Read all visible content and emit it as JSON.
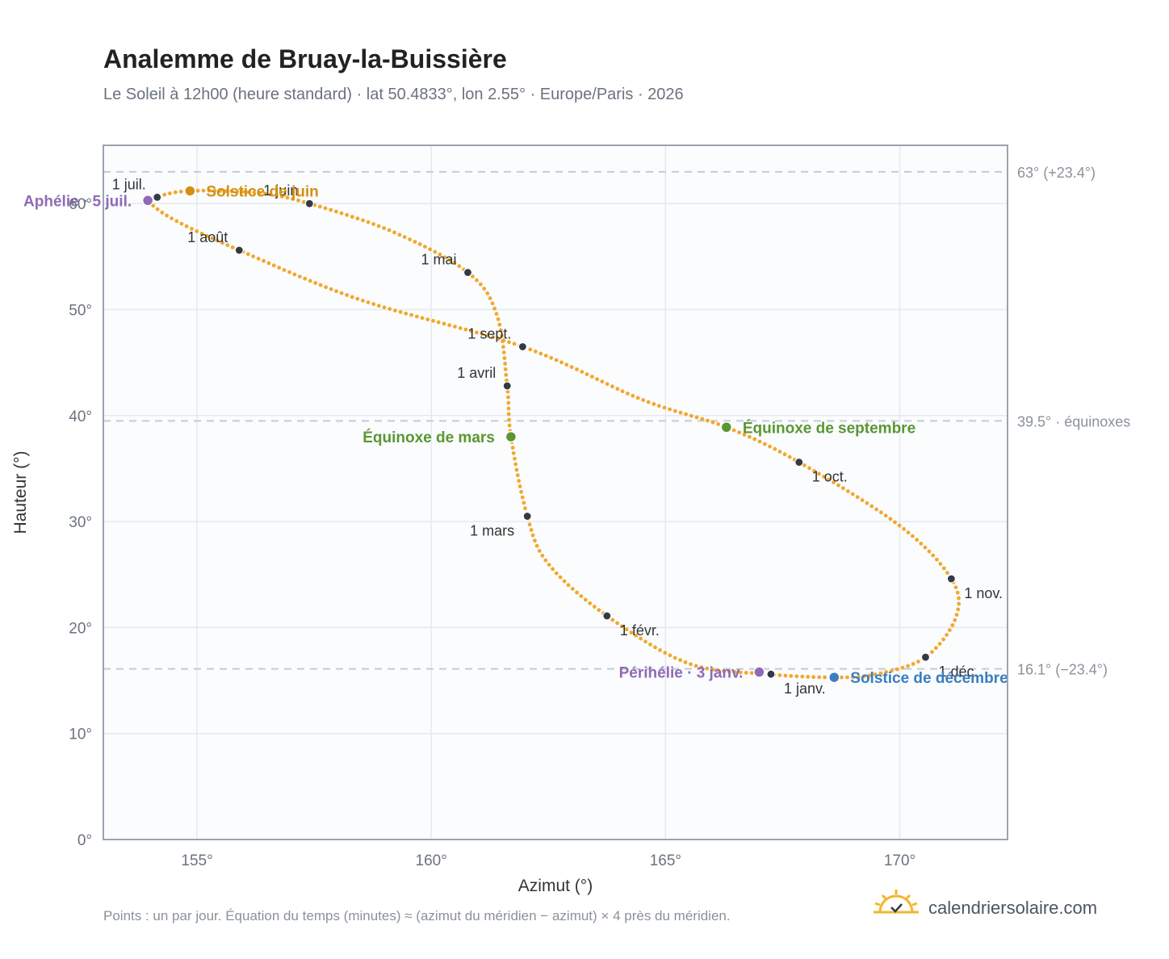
{
  "header": {
    "title": "Analemme de Bruay-la-Buissière",
    "subtitle": "Le Soleil à 12h00 (heure standard) · lat 50.4833°, lon 2.55° · Europe/Paris · 2026"
  },
  "footer": {
    "note": "Points : un par jour. Équation du temps (minutes) ≈ (azimut du méridien − azimut) × 4 près du méridien.",
    "brand": "calendriersolaire.com"
  },
  "colors": {
    "curve": "#f2a82c",
    "month_marker": "#333a45",
    "solstice_june": "#d4900f",
    "solstice_dec": "#3a7ebf",
    "equinox": "#5a9632",
    "apsis": "#8f6bb5",
    "grid": "#e5e9ef",
    "plot_bg": "#fafcfe",
    "frame": "#9aa4b2",
    "ref_line": "#c3cbd4"
  },
  "chart_data": {
    "type": "scatter",
    "xlabel": "Azimut (°)",
    "ylabel": "Hauteur (°)",
    "xlim": [
      153,
      172.3
    ],
    "ylim": [
      0,
      65.5
    ],
    "x_ticks": [
      {
        "value": 155,
        "label": "155°"
      },
      {
        "value": 160,
        "label": "160°"
      },
      {
        "value": 165,
        "label": "165°"
      },
      {
        "value": 170,
        "label": "170°"
      }
    ],
    "y_ticks": [
      {
        "value": 0,
        "label": "0°"
      },
      {
        "value": 10,
        "label": "10°"
      },
      {
        "value": 20,
        "label": "20°"
      },
      {
        "value": 30,
        "label": "30°"
      },
      {
        "value": 40,
        "label": "40°"
      },
      {
        "value": 50,
        "label": "50°"
      },
      {
        "value": 60,
        "label": "60°"
      }
    ],
    "grid": true,
    "reference_lines": [
      {
        "y": 63.0,
        "label": "63° (+23.4°)"
      },
      {
        "y": 39.5,
        "label": "39.5° · équinoxes"
      },
      {
        "y": 16.1,
        "label": "16.1° (−23.4°)"
      }
    ],
    "daily_track_waypoints": [
      {
        "x": 167.2,
        "y": 15.6
      },
      {
        "x": 165.5,
        "y": 16.6
      },
      {
        "x": 163.75,
        "y": 21.1
      },
      {
        "x": 162.5,
        "y": 26.0
      },
      {
        "x": 162.05,
        "y": 30.5
      },
      {
        "x": 161.7,
        "y": 38.0
      },
      {
        "x": 161.62,
        "y": 42.8
      },
      {
        "x": 161.4,
        "y": 49.5
      },
      {
        "x": 160.78,
        "y": 53.5
      },
      {
        "x": 159.2,
        "y": 57.3
      },
      {
        "x": 157.4,
        "y": 60.0
      },
      {
        "x": 156.3,
        "y": 61.0
      },
      {
        "x": 154.85,
        "y": 61.2
      },
      {
        "x": 154.1,
        "y": 60.6
      },
      {
        "x": 153.95,
        "y": 60.3
      },
      {
        "x": 154.5,
        "y": 58.5
      },
      {
        "x": 155.9,
        "y": 55.6
      },
      {
        "x": 158.5,
        "y": 50.9
      },
      {
        "x": 161.95,
        "y": 46.5
      },
      {
        "x": 164.5,
        "y": 41.5
      },
      {
        "x": 166.3,
        "y": 38.9
      },
      {
        "x": 167.85,
        "y": 35.6
      },
      {
        "x": 170.0,
        "y": 29.6
      },
      {
        "x": 171.1,
        "y": 24.6
      },
      {
        "x": 171.2,
        "y": 21.0
      },
      {
        "x": 170.55,
        "y": 17.2
      },
      {
        "x": 169.5,
        "y": 15.6
      },
      {
        "x": 168.6,
        "y": 15.3
      },
      {
        "x": 167.2,
        "y": 15.6
      }
    ],
    "month_markers": [
      {
        "label": "1 janv.",
        "x": 167.25,
        "y": 15.6,
        "anchor": "bottom-right"
      },
      {
        "label": "1 févr.",
        "x": 163.75,
        "y": 21.1,
        "anchor": "bottom-right"
      },
      {
        "label": "1 mars",
        "x": 162.05,
        "y": 30.5,
        "anchor": "bottom-left"
      },
      {
        "label": "1 avril",
        "x": 161.62,
        "y": 42.8,
        "anchor": "top-left"
      },
      {
        "label": "1 mai",
        "x": 160.78,
        "y": 53.5,
        "anchor": "top-left"
      },
      {
        "label": "1 juin",
        "x": 157.4,
        "y": 60.0,
        "anchor": "top-left"
      },
      {
        "label": "1 juil.",
        "x": 154.15,
        "y": 60.6,
        "anchor": "top-left"
      },
      {
        "label": "1 août",
        "x": 155.9,
        "y": 55.6,
        "anchor": "top-left"
      },
      {
        "label": "1 sept.",
        "x": 161.95,
        "y": 46.5,
        "anchor": "top-left"
      },
      {
        "label": "1 oct.",
        "x": 167.85,
        "y": 35.6,
        "anchor": "bottom-right"
      },
      {
        "label": "1 nov.",
        "x": 171.1,
        "y": 24.6,
        "anchor": "bottom-right"
      },
      {
        "label": "1 déc.",
        "x": 170.55,
        "y": 17.2,
        "anchor": "bottom-right"
      }
    ],
    "events": [
      {
        "label": "Solstice de juin",
        "x": 154.85,
        "y": 61.2,
        "color": "#d4900f",
        "side": "right"
      },
      {
        "label": "Solstice de décembre",
        "x": 168.6,
        "y": 15.3,
        "color": "#3a7ebf",
        "side": "right"
      },
      {
        "label": "Équinoxe de mars",
        "x": 161.7,
        "y": 38.0,
        "color": "#5a9632",
        "side": "left"
      },
      {
        "label": "Équinoxe de septembre",
        "x": 166.3,
        "y": 38.9,
        "color": "#5a9632",
        "side": "right"
      },
      {
        "label": "Aphélie · 5 juil.",
        "x": 153.95,
        "y": 60.3,
        "color": "#8f6bb5",
        "side": "left"
      },
      {
        "label": "Périhélie · 3 janv.",
        "x": 167.0,
        "y": 15.8,
        "color": "#8f6bb5",
        "side": "left"
      }
    ]
  }
}
